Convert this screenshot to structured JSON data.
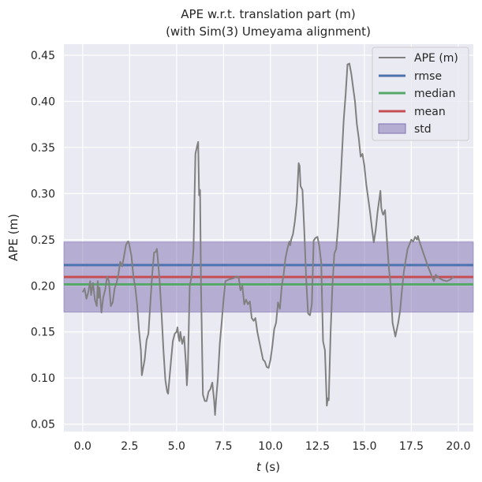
{
  "chart_data": {
    "type": "line",
    "title": "APE w.r.t. translation part (m)",
    "subtitle": "(with Sim(3) Umeyama alignment)",
    "xlabel_italic": "t",
    "xlabel_unit": " (s)",
    "ylabel": "APE (m)",
    "xlim": [
      -1.0,
      20.8
    ],
    "ylim": [
      0.042,
      0.462
    ],
    "xticks": [
      0.0,
      2.5,
      5.0,
      7.5,
      10.0,
      12.5,
      15.0,
      17.5,
      20.0
    ],
    "xtick_labels": [
      "0.0",
      "2.5",
      "5.0",
      "7.5",
      "10.0",
      "12.5",
      "15.0",
      "17.5",
      "20.0"
    ],
    "yticks": [
      0.05,
      0.1,
      0.15,
      0.2,
      0.25,
      0.3,
      0.35,
      0.4,
      0.45
    ],
    "ytick_labels": [
      "0.05",
      "0.10",
      "0.15",
      "0.20",
      "0.25",
      "0.30",
      "0.35",
      "0.40",
      "0.45"
    ],
    "grid": true,
    "legend_position": "top-right",
    "colors": {
      "background": "#eaeaf2",
      "grid": "#ffffff",
      "ape": "#808080",
      "rmse": "#4c72b0",
      "median": "#55a868",
      "mean": "#c44e52",
      "std": "#8172b2"
    },
    "stats": {
      "rmse": 0.2225,
      "median": 0.2015,
      "mean": 0.2095,
      "std_low": 0.1715,
      "std_high": 0.2475
    },
    "legend": [
      "APE (m)",
      "rmse",
      "median",
      "mean",
      "std"
    ],
    "series": [
      {
        "name": "APE (m)",
        "points": [
          [
            0.0,
            0.193
          ],
          [
            0.1,
            0.197
          ],
          [
            0.2,
            0.186
          ],
          [
            0.3,
            0.193
          ],
          [
            0.4,
            0.205
          ],
          [
            0.45,
            0.19
          ],
          [
            0.55,
            0.203
          ],
          [
            0.65,
            0.185
          ],
          [
            0.75,
            0.178
          ],
          [
            0.8,
            0.205
          ],
          [
            0.85,
            0.187
          ],
          [
            0.9,
            0.198
          ],
          [
            1.0,
            0.171
          ],
          [
            1.1,
            0.188
          ],
          [
            1.2,
            0.196
          ],
          [
            1.3,
            0.21
          ],
          [
            1.4,
            0.205
          ],
          [
            1.5,
            0.178
          ],
          [
            1.6,
            0.182
          ],
          [
            1.7,
            0.197
          ],
          [
            1.8,
            0.203
          ],
          [
            1.9,
            0.212
          ],
          [
            2.0,
            0.226
          ],
          [
            2.1,
            0.221
          ],
          [
            2.2,
            0.232
          ],
          [
            2.3,
            0.244
          ],
          [
            2.4,
            0.248
          ],
          [
            2.45,
            0.248
          ],
          [
            2.6,
            0.232
          ],
          [
            2.7,
            0.21
          ],
          [
            2.8,
            0.198
          ],
          [
            2.9,
            0.18
          ],
          [
            3.0,
            0.152
          ],
          [
            3.1,
            0.13
          ],
          [
            3.15,
            0.103
          ],
          [
            3.3,
            0.12
          ],
          [
            3.4,
            0.141
          ],
          [
            3.5,
            0.148
          ],
          [
            3.6,
            0.18
          ],
          [
            3.7,
            0.212
          ],
          [
            3.8,
            0.236
          ],
          [
            3.9,
            0.237
          ],
          [
            3.95,
            0.24
          ],
          [
            4.0,
            0.23
          ],
          [
            4.1,
            0.205
          ],
          [
            4.2,
            0.17
          ],
          [
            4.3,
            0.13
          ],
          [
            4.4,
            0.098
          ],
          [
            4.5,
            0.085
          ],
          [
            4.55,
            0.083
          ],
          [
            4.7,
            0.118
          ],
          [
            4.8,
            0.14
          ],
          [
            4.9,
            0.148
          ],
          [
            5.0,
            0.15
          ],
          [
            5.05,
            0.155
          ],
          [
            5.1,
            0.145
          ],
          [
            5.15,
            0.14
          ],
          [
            5.2,
            0.15
          ],
          [
            5.3,
            0.137
          ],
          [
            5.4,
            0.145
          ],
          [
            5.5,
            0.115
          ],
          [
            5.55,
            0.092
          ],
          [
            5.6,
            0.11
          ],
          [
            5.7,
            0.2
          ],
          [
            5.8,
            0.21
          ],
          [
            5.9,
            0.24
          ],
          [
            6.0,
            0.343
          ],
          [
            6.1,
            0.352
          ],
          [
            6.15,
            0.356
          ],
          [
            6.2,
            0.298
          ],
          [
            6.25,
            0.304
          ],
          [
            6.3,
            0.2
          ],
          [
            6.4,
            0.082
          ],
          [
            6.5,
            0.075
          ],
          [
            6.6,
            0.075
          ],
          [
            6.7,
            0.085
          ],
          [
            6.8,
            0.088
          ],
          [
            6.9,
            0.095
          ],
          [
            7.0,
            0.075
          ],
          [
            7.05,
            0.06
          ],
          [
            7.1,
            0.075
          ],
          [
            7.2,
            0.1
          ],
          [
            7.3,
            0.137
          ],
          [
            7.4,
            0.16
          ],
          [
            7.5,
            0.185
          ],
          [
            7.6,
            0.205
          ],
          [
            7.8,
            0.207
          ],
          [
            8.0,
            0.208
          ],
          [
            8.2,
            0.21
          ],
          [
            8.3,
            0.21
          ],
          [
            8.4,
            0.195
          ],
          [
            8.5,
            0.2
          ],
          [
            8.6,
            0.18
          ],
          [
            8.7,
            0.185
          ],
          [
            8.8,
            0.18
          ],
          [
            8.9,
            0.183
          ],
          [
            9.0,
            0.165
          ],
          [
            9.1,
            0.162
          ],
          [
            9.2,
            0.165
          ],
          [
            9.3,
            0.15
          ],
          [
            9.4,
            0.14
          ],
          [
            9.5,
            0.13
          ],
          [
            9.6,
            0.12
          ],
          [
            9.7,
            0.118
          ],
          [
            9.8,
            0.112
          ],
          [
            9.9,
            0.111
          ],
          [
            10.0,
            0.12
          ],
          [
            10.1,
            0.135
          ],
          [
            10.2,
            0.153
          ],
          [
            10.3,
            0.16
          ],
          [
            10.4,
            0.182
          ],
          [
            10.5,
            0.175
          ],
          [
            10.6,
            0.2
          ],
          [
            10.7,
            0.212
          ],
          [
            10.8,
            0.23
          ],
          [
            10.9,
            0.24
          ],
          [
            11.0,
            0.248
          ],
          [
            11.05,
            0.244
          ],
          [
            11.1,
            0.25
          ],
          [
            11.2,
            0.256
          ],
          [
            11.3,
            0.27
          ],
          [
            11.4,
            0.29
          ],
          [
            11.5,
            0.333
          ],
          [
            11.55,
            0.33
          ],
          [
            11.6,
            0.308
          ],
          [
            11.7,
            0.304
          ],
          [
            11.8,
            0.26
          ],
          [
            11.9,
            0.208
          ],
          [
            12.0,
            0.17
          ],
          [
            12.1,
            0.168
          ],
          [
            12.2,
            0.18
          ],
          [
            12.3,
            0.249
          ],
          [
            12.4,
            0.252
          ],
          [
            12.5,
            0.253
          ],
          [
            12.6,
            0.243
          ],
          [
            12.7,
            0.225
          ],
          [
            12.8,
            0.14
          ],
          [
            12.9,
            0.13
          ],
          [
            13.0,
            0.07
          ],
          [
            13.05,
            0.078
          ],
          [
            13.1,
            0.076
          ],
          [
            13.2,
            0.15
          ],
          [
            13.3,
            0.2
          ],
          [
            13.4,
            0.235
          ],
          [
            13.5,
            0.24
          ],
          [
            13.6,
            0.265
          ],
          [
            13.7,
            0.3
          ],
          [
            13.8,
            0.34
          ],
          [
            13.9,
            0.38
          ],
          [
            14.0,
            0.407
          ],
          [
            14.1,
            0.44
          ],
          [
            14.2,
            0.441
          ],
          [
            14.3,
            0.43
          ],
          [
            14.4,
            0.415
          ],
          [
            14.5,
            0.4
          ],
          [
            14.6,
            0.375
          ],
          [
            14.7,
            0.36
          ],
          [
            14.8,
            0.34
          ],
          [
            14.9,
            0.343
          ],
          [
            15.0,
            0.33
          ],
          [
            15.1,
            0.31
          ],
          [
            15.2,
            0.295
          ],
          [
            15.3,
            0.28
          ],
          [
            15.4,
            0.263
          ],
          [
            15.5,
            0.247
          ],
          [
            15.6,
            0.26
          ],
          [
            15.7,
            0.28
          ],
          [
            15.8,
            0.295
          ],
          [
            15.85,
            0.303
          ],
          [
            15.9,
            0.285
          ],
          [
            15.95,
            0.28
          ],
          [
            16.0,
            0.277
          ],
          [
            16.1,
            0.282
          ],
          [
            16.2,
            0.25
          ],
          [
            16.3,
            0.22
          ],
          [
            16.4,
            0.2
          ],
          [
            16.5,
            0.16
          ],
          [
            16.6,
            0.15
          ],
          [
            16.65,
            0.145
          ],
          [
            16.8,
            0.16
          ],
          [
            16.9,
            0.173
          ],
          [
            17.0,
            0.195
          ],
          [
            17.1,
            0.215
          ],
          [
            17.2,
            0.228
          ],
          [
            17.3,
            0.24
          ],
          [
            17.4,
            0.245
          ],
          [
            17.5,
            0.25
          ],
          [
            17.6,
            0.248
          ],
          [
            17.7,
            0.253
          ],
          [
            17.8,
            0.25
          ],
          [
            17.85,
            0.254
          ],
          [
            17.9,
            0.25
          ],
          [
            18.0,
            0.244
          ],
          [
            18.1,
            0.238
          ],
          [
            18.2,
            0.232
          ],
          [
            18.3,
            0.226
          ],
          [
            18.4,
            0.22
          ],
          [
            18.5,
            0.215
          ],
          [
            18.6,
            0.21
          ],
          [
            18.7,
            0.205
          ],
          [
            18.8,
            0.212
          ],
          [
            18.9,
            0.21
          ],
          [
            19.0,
            0.208
          ],
          [
            19.2,
            0.206
          ],
          [
            19.4,
            0.205
          ],
          [
            19.6,
            0.207
          ],
          [
            19.75,
            0.21
          ]
        ]
      }
    ]
  }
}
